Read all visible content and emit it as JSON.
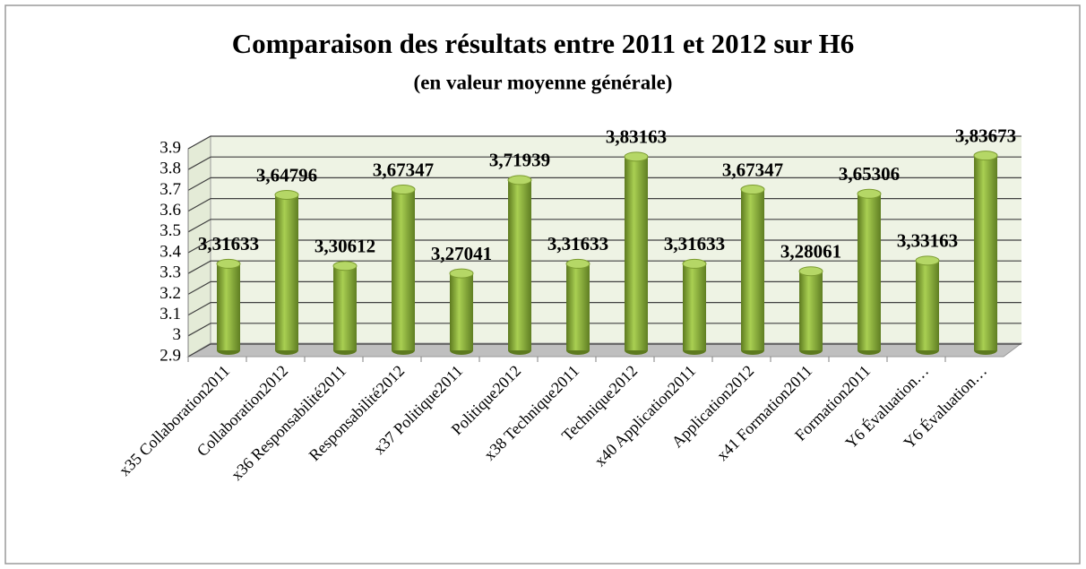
{
  "chart_data": {
    "type": "bar",
    "title": "Comparaison des résultats entre 2011 et 2012 sur H6",
    "subtitle": "(en valeur moyenne générale)",
    "categories": [
      "x35 Collaboration2011",
      "Collaboration2012",
      "x36 Responsabilité2011",
      "Responsabilité2012",
      "x37 Politique2011",
      "Politique2012",
      "x38 Technique2011",
      "Technique2012",
      "x40 Application2011",
      "Application2012",
      "x41 Formation2011",
      "Formation2011",
      "Y6 Évaluation…",
      "Y6 Évaluation…"
    ],
    "values": [
      3.31633,
      3.64796,
      3.30612,
      3.67347,
      3.27041,
      3.71939,
      3.31633,
      3.83163,
      3.31633,
      3.67347,
      3.28061,
      3.65306,
      3.33163,
      3.83673
    ],
    "value_labels": [
      "3,31633",
      "3,64796",
      "3,30612",
      "3,67347",
      "3,27041",
      "3,71939",
      "3,31633",
      "3,83163",
      "3,31633",
      "3,67347",
      "3,28061",
      "3,65306",
      "3,33163",
      "3,83673"
    ],
    "color": "#8db33c",
    "ylim": [
      2.9,
      3.9
    ],
    "yticks": [
      2.9,
      3,
      3.1,
      3.2,
      3.3,
      3.4,
      3.5,
      3.6,
      3.7,
      3.8,
      3.9
    ],
    "grid": true
  }
}
